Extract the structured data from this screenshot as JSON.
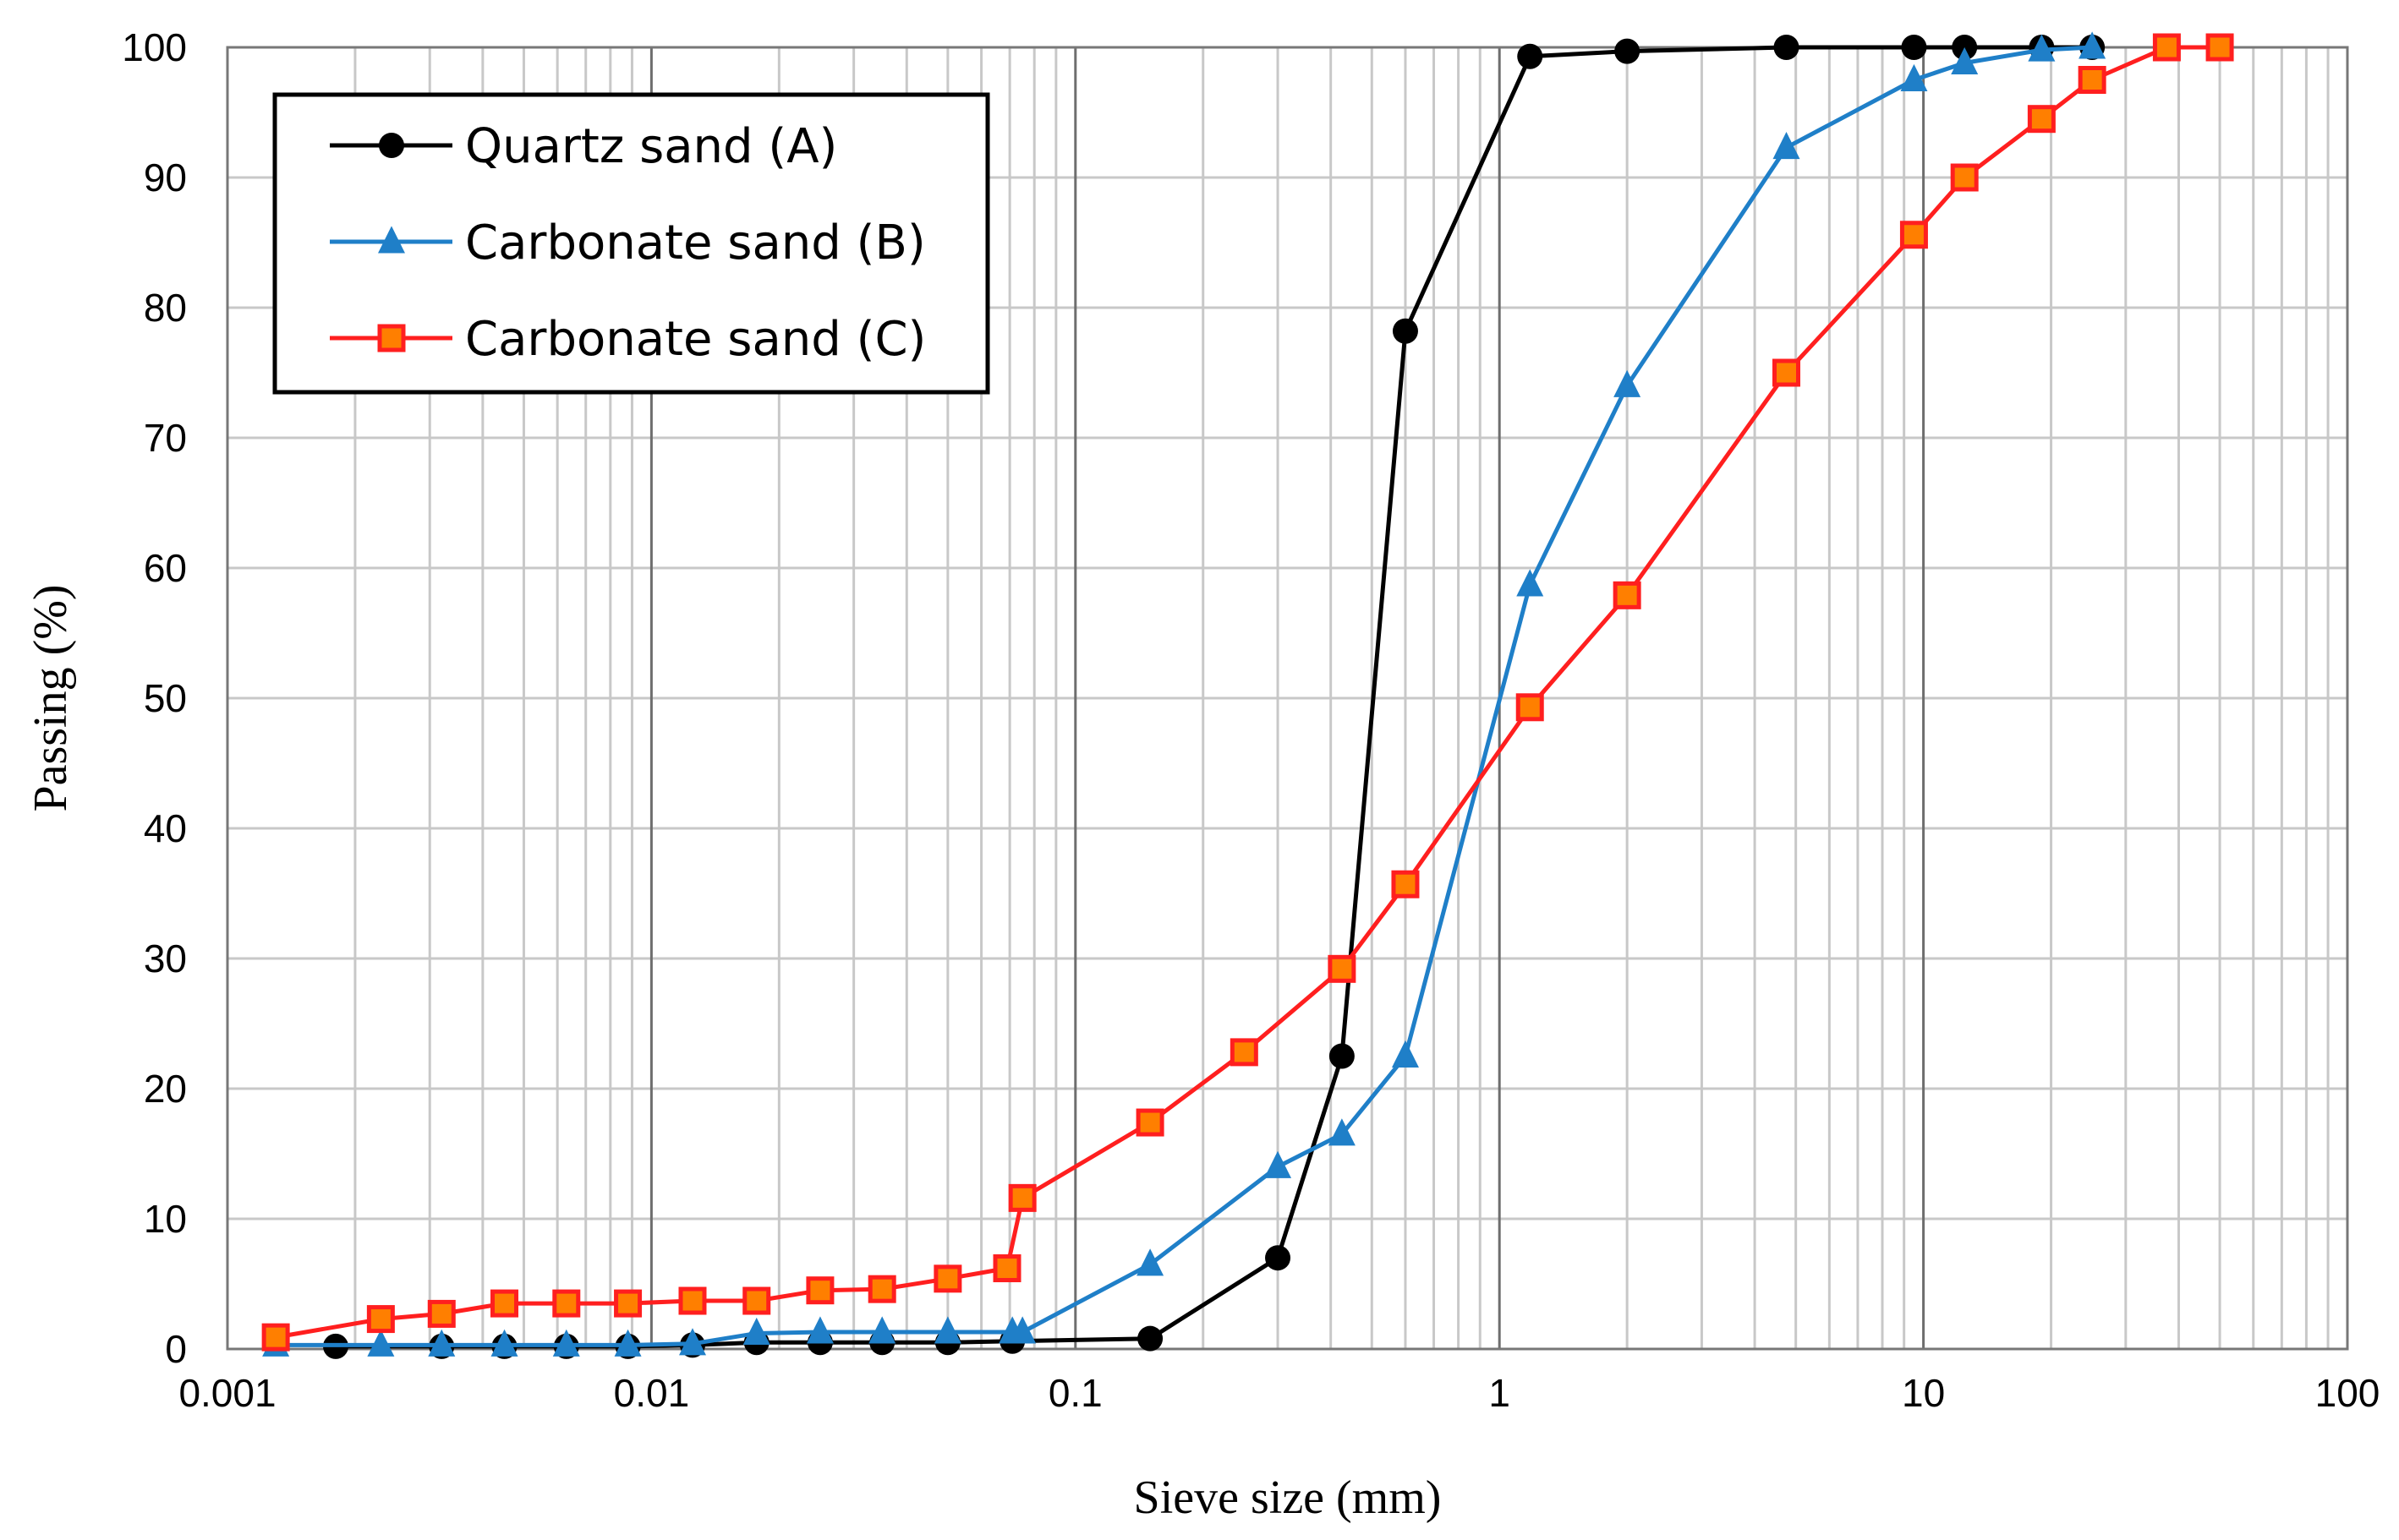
{
  "chart_data": {
    "type": "line",
    "xlabel": "Sieve size (mm)",
    "ylabel": "Passing (%)",
    "xscale": "log",
    "xlim": [
      0.001,
      100
    ],
    "ylim": [
      0,
      100
    ],
    "x_ticks": [
      0.001,
      0.01,
      0.1,
      1,
      10,
      100
    ],
    "x_tick_labels": [
      "0.001",
      "0.01",
      "0.1",
      "1",
      "10",
      "100"
    ],
    "y_ticks": [
      0,
      10,
      20,
      30,
      40,
      50,
      60,
      70,
      80,
      90,
      100
    ],
    "y_tick_labels": [
      "0",
      "10",
      "20",
      "30",
      "40",
      "50",
      "60",
      "70",
      "80",
      "90",
      "100"
    ],
    "grid": true,
    "legend_position": "top-left",
    "series": [
      {
        "name": "Quartz sand (A)",
        "color": "#000000",
        "marker": "circle",
        "points": [
          [
            0.0018,
            0.2
          ],
          [
            0.0032,
            0.2
          ],
          [
            0.0045,
            0.2
          ],
          [
            0.0063,
            0.2
          ],
          [
            0.0088,
            0.2
          ],
          [
            0.0125,
            0.3
          ],
          [
            0.0177,
            0.5
          ],
          [
            0.025,
            0.5
          ],
          [
            0.035,
            0.5
          ],
          [
            0.05,
            0.5
          ],
          [
            0.071,
            0.6
          ],
          [
            0.15,
            0.8
          ],
          [
            0.3,
            7
          ],
          [
            0.425,
            22.5
          ],
          [
            0.6,
            78.2
          ],
          [
            1.18,
            99.3
          ],
          [
            2,
            99.7
          ],
          [
            4.75,
            100
          ],
          [
            9.5,
            100
          ],
          [
            12.5,
            100
          ],
          [
            19,
            100
          ],
          [
            25,
            100
          ]
        ]
      },
      {
        "name": "Carbonate sand (B)",
        "color": "#1f7fc8",
        "marker": "triangle",
        "points": [
          [
            0.0013,
            0.3
          ],
          [
            0.0023,
            0.3
          ],
          [
            0.0032,
            0.3
          ],
          [
            0.0045,
            0.3
          ],
          [
            0.0063,
            0.3
          ],
          [
            0.0088,
            0.3
          ],
          [
            0.0125,
            0.4
          ],
          [
            0.0177,
            1.2
          ],
          [
            0.025,
            1.3
          ],
          [
            0.035,
            1.3
          ],
          [
            0.05,
            1.3
          ],
          [
            0.071,
            1.3
          ],
          [
            0.075,
            1.3
          ],
          [
            0.15,
            6.5
          ],
          [
            0.3,
            14
          ],
          [
            0.425,
            16.5
          ],
          [
            0.6,
            22.5
          ],
          [
            1.18,
            58.7
          ],
          [
            2,
            74
          ],
          [
            4.75,
            92.3
          ],
          [
            9.5,
            97.5
          ],
          [
            12.5,
            98.8
          ],
          [
            19,
            99.8
          ],
          [
            25,
            100
          ]
        ]
      },
      {
        "name": "Carbonate sand (C)",
        "color": "#ff1f1f",
        "marker_fill": "#ff7f00",
        "marker": "square",
        "points": [
          [
            0.0013,
            0.9
          ],
          [
            0.0023,
            2.3
          ],
          [
            0.0032,
            2.7
          ],
          [
            0.0045,
            3.5
          ],
          [
            0.0063,
            3.5
          ],
          [
            0.0088,
            3.5
          ],
          [
            0.0125,
            3.7
          ],
          [
            0.0177,
            3.7
          ],
          [
            0.025,
            4.5
          ],
          [
            0.035,
            4.6
          ],
          [
            0.05,
            5.4
          ],
          [
            0.069,
            6.2
          ],
          [
            0.075,
            11.6
          ],
          [
            0.15,
            17.4
          ],
          [
            0.25,
            22.8
          ],
          [
            0.425,
            29.2
          ],
          [
            0.6,
            35.7
          ],
          [
            1.18,
            49.3
          ],
          [
            2,
            57.9
          ],
          [
            4.75,
            75
          ],
          [
            9.5,
            85.6
          ],
          [
            12.5,
            90
          ],
          [
            19,
            94.5
          ],
          [
            25,
            97.5
          ],
          [
            37.5,
            100
          ],
          [
            50,
            100
          ]
        ]
      }
    ]
  }
}
